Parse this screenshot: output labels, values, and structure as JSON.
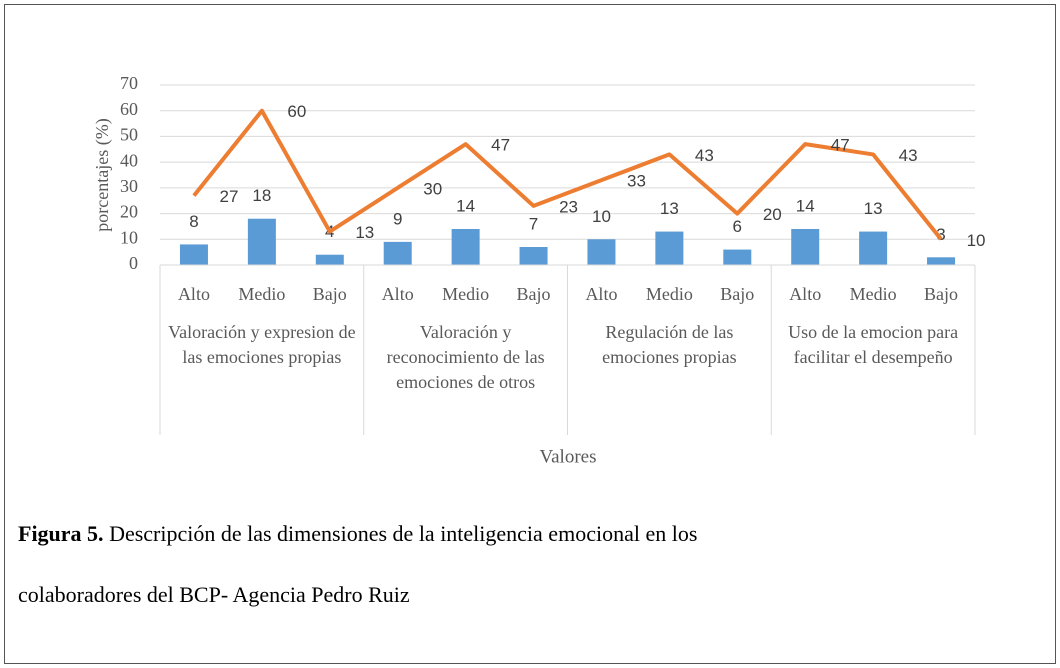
{
  "chart_data": {
    "type": "bar",
    "categories": [
      "Alto",
      "Medio",
      "Bajo",
      "Alto",
      "Medio",
      "Bajo",
      "Alto",
      "Medio",
      "Bajo",
      "Alto",
      "Medio",
      "Bajo"
    ],
    "groups": [
      "Valoración y expresion de las emociones propias",
      "Valoración y reconocimiento de las emociones de otros",
      "Regulación de las emociones propias",
      "Uso de la emocion para facilitar el desempeño"
    ],
    "series": [
      {
        "kind": "bar",
        "color": "#5b9bd5",
        "values": [
          8,
          18,
          4,
          9,
          14,
          7,
          10,
          13,
          6,
          14,
          13,
          3
        ]
      },
      {
        "kind": "line",
        "color": "#ed7d31",
        "values": [
          27,
          60,
          13,
          30,
          47,
          23,
          33,
          43,
          20,
          47,
          43,
          10
        ]
      }
    ],
    "y_label": "porcentajes (%)",
    "x_label": "Valores",
    "ylim": [
      0,
      70
    ],
    "yticks": [
      0,
      10,
      20,
      30,
      40,
      50,
      60,
      70
    ],
    "grid": true
  },
  "caption": {
    "label": "Figura 5.",
    "text": " Descripción de las dimensiones de la inteligencia emocional en los",
    "text2": "colaboradores del BCP- Agencia Pedro Ruiz"
  }
}
